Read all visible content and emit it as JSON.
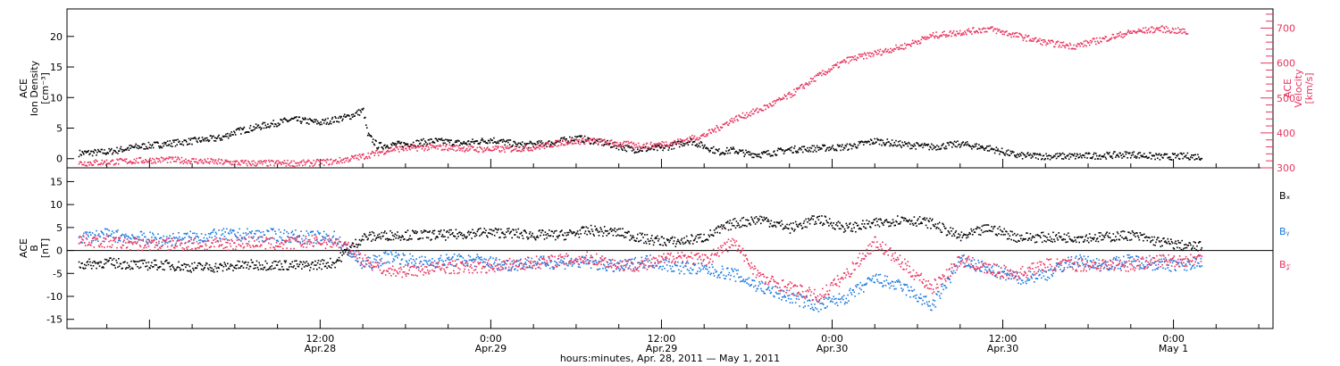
{
  "colors": {
    "black": "#000000",
    "pink": "#e8345f",
    "blue": "#1a7ae0"
  },
  "chart_data": [
    {
      "type": "scatter",
      "panel": "top",
      "ylabel_left": [
        "ACE",
        "Ion Density",
        "[cm⁻³]"
      ],
      "ylabel_right": [
        "ACE",
        "Velocity",
        "[km/s]"
      ],
      "ylim_left": [
        -1.5,
        24.5
      ],
      "yticks_left": [
        0,
        5,
        10,
        15,
        20
      ],
      "ylim_right": [
        300,
        755
      ],
      "yticks_right": [
        300,
        400,
        500,
        600,
        700
      ],
      "x_unit": "hours since Apr 28 2011 00:00",
      "series": [
        {
          "color": "#000000",
          "axis": "left",
          "x": [
            -5,
            -3,
            -1,
            1,
            3,
            5,
            6,
            8,
            10,
            12,
            14,
            15,
            15.3,
            16,
            18,
            20,
            22,
            24,
            26,
            28,
            30,
            32,
            34,
            36,
            38,
            40,
            41,
            42,
            43,
            45,
            47,
            49,
            51,
            53,
            55,
            57,
            59,
            61,
            63,
            65,
            67,
            69,
            71,
            73,
            74
          ],
          "y": [
            1,
            1.2,
            2,
            2.5,
            3,
            3.5,
            4.5,
            5.5,
            6.5,
            6,
            7,
            8,
            4,
            2.2,
            2.5,
            3,
            2.6,
            3.2,
            2.3,
            2.6,
            3.5,
            2.6,
            1.6,
            1.8,
            3,
            1.2,
            1.5,
            0.9,
            0.8,
            1.6,
            1.8,
            2,
            3,
            2.4,
            2,
            2.5,
            1.8,
            0.6,
            0.5,
            0.5,
            0.6,
            0.8,
            0.4,
            0.5,
            0.4
          ]
        },
        {
          "color": "#e8345f",
          "axis": "right",
          "x": [
            -5,
            -3,
            -1,
            1,
            3,
            5,
            7,
            9,
            11,
            13,
            15,
            17,
            19,
            21,
            23,
            25,
            27,
            29,
            31,
            33,
            35,
            37,
            39,
            41,
            43,
            45,
            47,
            49,
            51,
            53,
            55,
            57,
            59,
            61,
            63,
            65,
            67,
            69,
            71,
            73
          ],
          "y": [
            315,
            318,
            322,
            325,
            322,
            318,
            315,
            315,
            315,
            320,
            335,
            355,
            360,
            360,
            355,
            355,
            360,
            375,
            380,
            370,
            365,
            375,
            395,
            440,
            470,
            510,
            565,
            610,
            630,
            650,
            680,
            690,
            700,
            680,
            660,
            650,
            670,
            690,
            700,
            690
          ]
        }
      ]
    },
    {
      "type": "scatter",
      "panel": "bottom",
      "ylabel_left": [
        "ACE",
        "B",
        "[nT]"
      ],
      "ylim": [
        -17,
        18
      ],
      "yticks": [
        -15,
        -10,
        -5,
        0,
        5,
        10,
        15
      ],
      "legend": [
        "Bₓ",
        "Bᵧ",
        "B𝓏"
      ],
      "series": [
        {
          "name": "Bₓ",
          "color": "#000000",
          "x": [
            -5,
            -3,
            -1,
            1,
            3,
            5,
            7,
            9,
            11,
            13,
            14,
            15,
            17,
            19,
            21,
            23,
            25,
            27,
            29,
            31,
            33,
            35,
            37,
            39,
            41,
            43,
            45,
            47,
            49,
            51,
            53,
            55,
            57,
            59,
            61,
            63,
            65,
            67,
            69,
            71,
            73,
            74
          ],
          "y": [
            -3,
            -2.5,
            -3,
            -3,
            -3.5,
            -3.5,
            -3,
            -3,
            -3.2,
            -2.5,
            0.5,
            3,
            3.5,
            3.5,
            3.5,
            4,
            4,
            3.5,
            3.5,
            4.5,
            4,
            2.5,
            2,
            3,
            6,
            7,
            5,
            7,
            5,
            6,
            7,
            6,
            3,
            5,
            3,
            3,
            3,
            3,
            3.5,
            2,
            1,
            1
          ]
        },
        {
          "name": "Bᵧ",
          "color": "#1a7ae0",
          "x": [
            -5,
            -3,
            -1,
            1,
            3,
            5,
            7,
            9,
            11,
            13,
            14,
            15,
            17,
            19,
            21,
            23,
            25,
            27,
            29,
            31,
            33,
            35,
            37,
            39,
            41,
            43,
            45,
            47,
            49,
            51,
            53,
            55,
            57,
            59,
            61,
            63,
            65,
            67,
            69,
            71,
            73,
            74
          ],
          "y": [
            3,
            3.5,
            3,
            2.5,
            3,
            3.5,
            3.5,
            3.5,
            3,
            3,
            0,
            -3,
            -1,
            -2.5,
            -2,
            -2,
            -3,
            -2.5,
            -2.5,
            -2.5,
            -3.5,
            -2,
            -3.5,
            -4,
            -5,
            -8,
            -10,
            -12,
            -10,
            -6,
            -8,
            -12,
            -2,
            -4,
            -6,
            -5,
            -2,
            -3,
            -2,
            -3,
            -3,
            -2
          ]
        },
        {
          "name": "B𝓏",
          "color": "#e8345f",
          "x": [
            -5,
            -3,
            -1,
            1,
            3,
            5,
            7,
            9,
            11,
            13,
            14,
            15,
            17,
            19,
            21,
            23,
            25,
            27,
            29,
            31,
            33,
            35,
            37,
            39,
            41,
            43,
            45,
            47,
            49,
            51,
            53,
            55,
            57,
            59,
            61,
            63,
            65,
            67,
            69,
            71,
            73,
            74
          ],
          "y": [
            2.5,
            2,
            1.5,
            1.5,
            1.5,
            1.5,
            2,
            1.5,
            2,
            2,
            0.5,
            -2,
            -4.5,
            -4,
            -3.5,
            -3.5,
            -3,
            -2.5,
            -2,
            -1.5,
            -3,
            -3,
            -1,
            -2,
            2,
            -6,
            -8,
            -10,
            -5,
            2,
            -3,
            -8,
            -2,
            -4,
            -5,
            -3,
            -3,
            -3,
            -3,
            -2,
            -2,
            -1.5
          ]
        }
      ]
    }
  ],
  "x_axis": {
    "xlim": [
      -5.8,
      79
    ],
    "ticks": [
      {
        "x": 12,
        "time": "12:00",
        "date": "Apr.28"
      },
      {
        "x": 24,
        "time": "0:00",
        "date": "Apr.29"
      },
      {
        "x": 36,
        "time": "12:00",
        "date": "Apr.29"
      },
      {
        "x": 48,
        "time": "0:00",
        "date": "Apr.30"
      },
      {
        "x": 60,
        "time": "12:00",
        "date": "Apr.30"
      },
      {
        "x": 72,
        "time": "0:00",
        "date": "May  1"
      }
    ],
    "xlabel": "hours:minutes, Apr. 28, 2011 — May  1, 2011"
  }
}
